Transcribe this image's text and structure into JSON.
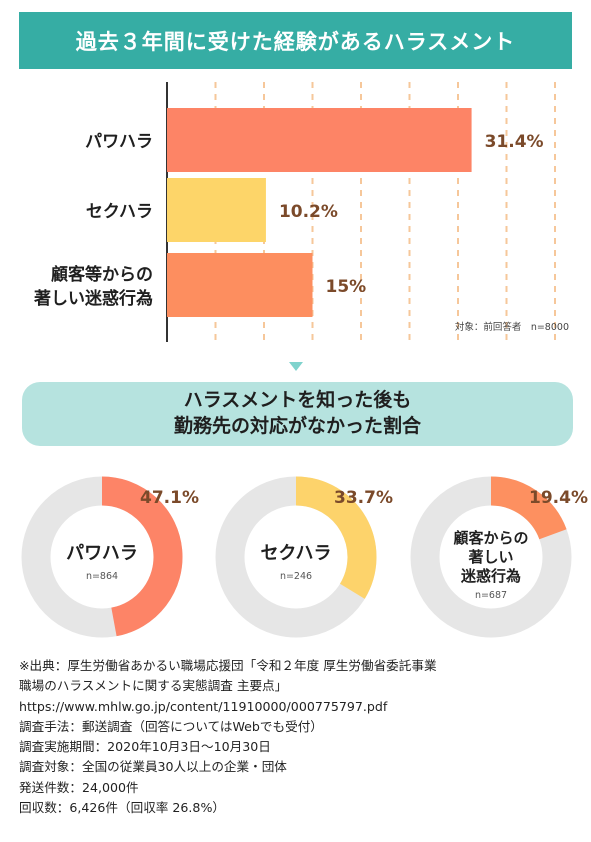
{
  "header": {
    "title": "過去３年間に受けた経験があるハラスメント"
  },
  "chart_data": [
    {
      "type": "bar",
      "orientation": "horizontal",
      "categories": [
        "パワハラ",
        "セクハラ",
        "顧客等からの著しい迷惑行為"
      ],
      "category_lines": [
        [
          "パワハラ"
        ],
        [
          "セクハラ"
        ],
        [
          "顧客等からの",
          "著しい迷惑行為"
        ]
      ],
      "values": [
        31.4,
        10.2,
        15
      ],
      "value_labels": [
        "31.4%",
        "10.2%",
        "15%"
      ],
      "colors": [
        "#fd8466",
        "#fdd569",
        "#fd8e5f"
      ],
      "xlim": [
        0,
        40
      ],
      "grid": true,
      "note": "対象：前回答者　n=8000"
    },
    {
      "type": "pie",
      "style": "donut",
      "title_lines": [
        "ハラスメントを知った後も",
        "勤務先の対応がなかった割合"
      ],
      "items": [
        {
          "label_lines": [
            "パワハラ"
          ],
          "value": 47.1,
          "value_label": "47.1%",
          "n": "n=864",
          "color": "#fd8467"
        },
        {
          "label_lines": [
            "セクハラ"
          ],
          "value": 33.7,
          "value_label": "33.7%",
          "n": "n=246",
          "color": "#fdd36b"
        },
        {
          "label_lines": [
            "顧客からの",
            "著しい",
            "迷惑行為"
          ],
          "value": 19.4,
          "value_label": "19.4%",
          "n": "n=687",
          "color": "#fd9060"
        }
      ],
      "track_color": "#e6e6e6"
    }
  ],
  "footer": {
    "lines": [
      "※出典：厚生労働省あかるい職場応援団「令和２年度 厚生労働省委託事業",
      "職場のハラスメントに関する実態調査 主要点」",
      "https://www.mhlw.go.jp/content/11910000/000775797.pdf",
      "調査手法：郵送調査（回答についてはWebでも受付）",
      "調査実施期間：2020年10月3日～10月30日",
      "調査対象：全国の従業員30人以上の企業・団体",
      "発送件数：24,000件",
      "回収数：6,426件（回収率 26.8%）"
    ]
  },
  "colors": {
    "accent": "#36ada4",
    "sub_box": "#b6e3df",
    "arrow": "#7fd3cd",
    "value_text": "#7b4a2a",
    "grid": "#f6c79a"
  }
}
